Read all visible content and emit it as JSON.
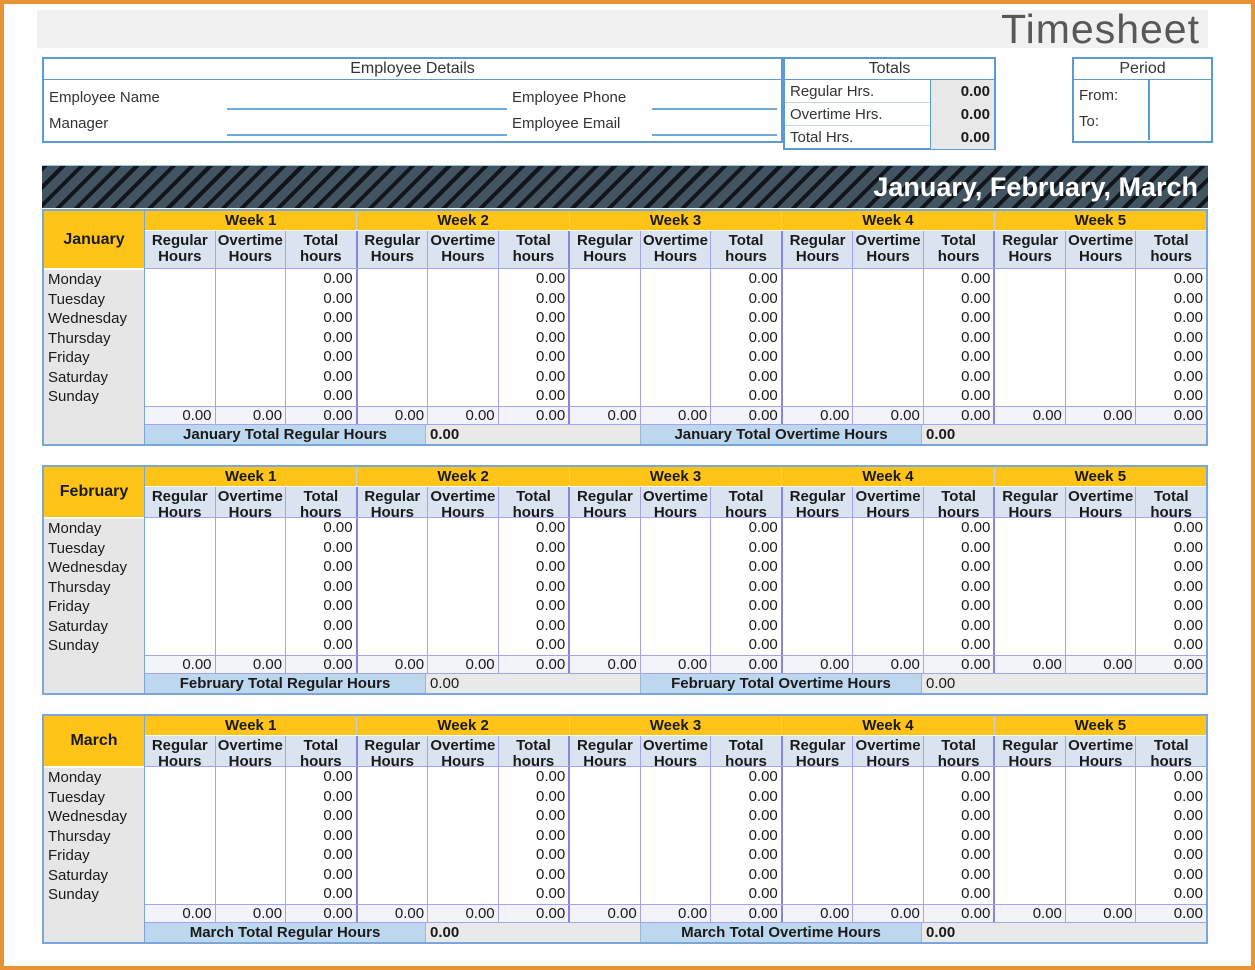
{
  "title": "Timesheet",
  "employee_details": {
    "header": "Employee Details",
    "rows": [
      {
        "left_label": "Employee Name",
        "left_value": "",
        "right_label": "Employee Phone",
        "right_value": ""
      },
      {
        "left_label": "Manager",
        "left_value": "",
        "right_label": "Employee Email",
        "right_value": ""
      }
    ]
  },
  "totals_box": {
    "header": "Totals",
    "rows": [
      {
        "label": "Regular Hrs.",
        "value": "0.00"
      },
      {
        "label": "Overtime Hrs.",
        "value": "0.00"
      },
      {
        "label": "Total Hrs.",
        "value": "0.00"
      }
    ]
  },
  "period_box": {
    "header": "Period",
    "rows": [
      {
        "label": "From:",
        "value": ""
      },
      {
        "label": "To:",
        "value": ""
      }
    ]
  },
  "quarter_banner": "January, February, March",
  "week_headers": [
    "Week 1",
    "Week 2",
    "Week 3",
    "Week 4",
    "Week 5"
  ],
  "sub_headers": [
    [
      "Regular",
      "Hours"
    ],
    [
      "Overtime",
      "Hours"
    ],
    [
      "Total",
      "hours"
    ]
  ],
  "days": [
    "Monday",
    "Tuesday",
    "Wednesday",
    "Thursday",
    "Friday",
    "Saturday",
    "Sunday"
  ],
  "months": [
    {
      "name": "January",
      "day_rows": [
        [
          "0.00",
          "0.00",
          "0.00",
          "0.00",
          "0.00"
        ],
        [
          "0.00",
          "0.00",
          "0.00",
          "0.00",
          "0.00"
        ],
        [
          "0.00",
          "0.00",
          "0.00",
          "0.00",
          "0.00"
        ],
        [
          "0.00",
          "0.00",
          "0.00",
          "0.00",
          "0.00"
        ],
        [
          "0.00",
          "0.00",
          "0.00",
          "0.00",
          "0.00"
        ],
        [
          "0.00",
          "0.00",
          "0.00",
          "0.00",
          "0.00"
        ],
        [
          "0.00",
          "0.00",
          "0.00",
          "0.00",
          "0.00"
        ]
      ],
      "week_totals": [
        "0.00",
        "0.00",
        "0.00",
        "0.00",
        "0.00",
        "0.00",
        "0.00",
        "0.00",
        "0.00",
        "0.00",
        "0.00",
        "0.00",
        "0.00",
        "0.00",
        "0.00"
      ],
      "summary": [
        {
          "label": "January Total Regular Hours",
          "value": "0.00",
          "bold": true
        },
        {
          "label": "January Total Overtime Hours",
          "value": "0.00",
          "bold": true
        }
      ]
    },
    {
      "name": "February",
      "day_rows": [
        [
          "0.00",
          "0.00",
          "0.00",
          "0.00",
          "0.00"
        ],
        [
          "0.00",
          "0.00",
          "0.00",
          "0.00",
          "0.00"
        ],
        [
          "0.00",
          "0.00",
          "0.00",
          "0.00",
          "0.00"
        ],
        [
          "0.00",
          "0.00",
          "0.00",
          "0.00",
          "0.00"
        ],
        [
          "0.00",
          "0.00",
          "0.00",
          "0.00",
          "0.00"
        ],
        [
          "0.00",
          "0.00",
          "0.00",
          "0.00",
          "0.00"
        ],
        [
          "0.00",
          "0.00",
          "0.00",
          "0.00",
          "0.00"
        ]
      ],
      "week_totals": [
        "0.00",
        "0.00",
        "0.00",
        "0.00",
        "0.00",
        "0.00",
        "0.00",
        "0.00",
        "0.00",
        "0.00",
        "0.00",
        "0.00",
        "0.00",
        "0.00",
        "0.00"
      ],
      "summary": [
        {
          "label": "February Total Regular Hours",
          "value": "0.00",
          "bold": false
        },
        {
          "label": "February Total Overtime Hours",
          "value": "0.00",
          "bold": false
        }
      ]
    },
    {
      "name": "March",
      "day_rows": [
        [
          "0.00",
          "0.00",
          "0.00",
          "0.00",
          "0.00"
        ],
        [
          "0.00",
          "0.00",
          "0.00",
          "0.00",
          "0.00"
        ],
        [
          "0.00",
          "0.00",
          "0.00",
          "0.00",
          "0.00"
        ],
        [
          "0.00",
          "0.00",
          "0.00",
          "0.00",
          "0.00"
        ],
        [
          "0.00",
          "0.00",
          "0.00",
          "0.00",
          "0.00"
        ],
        [
          "0.00",
          "0.00",
          "0.00",
          "0.00",
          "0.00"
        ],
        [
          "0.00",
          "0.00",
          "0.00",
          "0.00",
          "0.00"
        ]
      ],
      "week_totals": [
        "0.00",
        "0.00",
        "0.00",
        "0.00",
        "0.00",
        "0.00",
        "0.00",
        "0.00",
        "0.00",
        "0.00",
        "0.00",
        "0.00",
        "0.00",
        "0.00",
        "0.00"
      ],
      "summary": [
        {
          "label": "March Total Regular Hours",
          "value": "0.00",
          "bold": true
        },
        {
          "label": "March Total Overtime Hours",
          "value": "0.00",
          "bold": true
        }
      ]
    }
  ],
  "colors": {
    "page_border_orange": "#E89434",
    "title_gray": "#585858",
    "title_band_gray": "#F1F1F1",
    "box_border_blue": "#5B9BD5",
    "header_yellow": "#FFC417",
    "subheader_blue": "#D9E4F0",
    "grid_purple": "#A5A3EE",
    "week_divider_purple": "#8886D8",
    "day_column_gray": "#E6E6E6",
    "summary_label_blue": "#BDD7EE",
    "summary_value_gray": "#E9E9E9",
    "banner_slate": "#42545F",
    "banner_stripe_black": "#10161B",
    "banner_text": "#FFFFFF"
  }
}
